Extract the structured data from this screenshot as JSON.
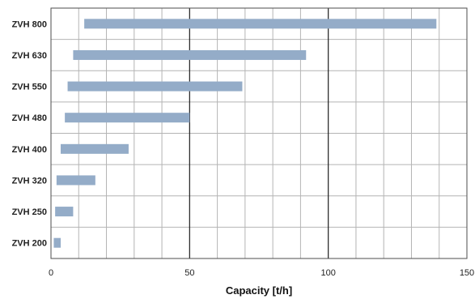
{
  "chart_data": {
    "type": "bar",
    "orientation": "horizontal",
    "title": "",
    "xlabel": "Capacity [t/h]",
    "ylabel": "",
    "xlim": [
      0,
      150
    ],
    "x_ticks": [
      0,
      50,
      100,
      150
    ],
    "x_tick_labels": [
      "0",
      "50",
      "100",
      "150"
    ],
    "minor_grid_step": 10,
    "major_gridlines": [
      50,
      100
    ],
    "grid": true,
    "categories": [
      "ZVH 800",
      "ZVH 630",
      "ZVH 550",
      "ZVH 480",
      "ZVH 400",
      "ZVH 320",
      "ZVH 250",
      "ZVH 200"
    ],
    "ranges": [
      [
        12,
        139
      ],
      [
        8,
        92
      ],
      [
        6,
        69
      ],
      [
        5,
        50
      ],
      [
        3.5,
        28
      ],
      [
        2,
        16
      ],
      [
        1.5,
        8
      ],
      [
        1,
        3.5
      ]
    ],
    "colors": {
      "bar": "#94acc8",
      "grid_minor": "#b4b4b4",
      "grid_major": "#1e1e1e",
      "frame": "#4d4d4d",
      "text": "#222222"
    }
  }
}
